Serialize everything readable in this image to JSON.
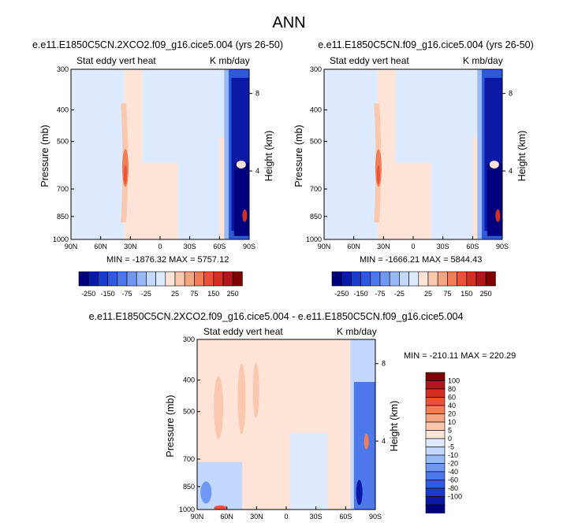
{
  "figure_title": "ANN",
  "colors": {
    "neg": [
      "#00007f",
      "#0a1aa6",
      "#1a3ccb",
      "#2f5ae0",
      "#4c78ec",
      "#6f97f3",
      "#98b8f8",
      "#c2d8fc",
      "#deebfe"
    ],
    "pos": [
      "#fde4d6",
      "#f9c8ae",
      "#f5a581",
      "#f07d56",
      "#e8533a",
      "#d32f22",
      "#b0161a",
      "#7f0000"
    ]
  },
  "panels": [
    {
      "title": "e.e11.E1850C5CN.2XCO2.f09_g16.cice5.004 (yrs 26-50)",
      "left_label": "Stat eddy vert heat",
      "right_label": "K mb/day",
      "y_axis_label": "Pressure (mb)",
      "y2_axis_label": "Height (km)",
      "y_ticks": [
        "300",
        "400",
        "500",
        "700",
        "850",
        "1000"
      ],
      "y2_ticks": [
        "8",
        "4"
      ],
      "x_ticks": [
        "90N",
        "60N",
        "30N",
        "0",
        "30S",
        "60S",
        "90S"
      ],
      "minmax": "MIN = -1876.32   MAX = 5757.12"
    },
    {
      "title": "e.e11.E1850C5CN.f09_g16.cice5.004 (yrs 26-50)",
      "left_label": "Stat eddy vert heat",
      "right_label": "K mb/day",
      "y_axis_label": "Pressure (mb)",
      "y2_axis_label": "Height (km)",
      "y_ticks": [
        "300",
        "400",
        "500",
        "700",
        "850",
        "1000"
      ],
      "y2_ticks": [
        "8",
        "4"
      ],
      "x_ticks": [
        "90N",
        "60N",
        "30N",
        "0",
        "30S",
        "60S",
        "90S"
      ],
      "minmax": "MIN = -1666.21   MAX = 5844.43"
    },
    {
      "title": "e.e11.E1850C5CN.2XCO2.f09_g16.cice5.004 - e.e11.E1850C5CN.f09_g16.cice5.004",
      "left_label": "Stat eddy vert heat",
      "right_label": "K mb/day",
      "y_axis_label": "Pressure (mb)",
      "y2_axis_label": "Height (km)",
      "y_ticks": [
        "300",
        "400",
        "500",
        "700",
        "850",
        "1000"
      ],
      "y2_ticks": [
        "8",
        "4"
      ],
      "x_ticks": [
        "90N",
        "60N",
        "30N",
        "0",
        "30S",
        "60S",
        "90S"
      ],
      "minmax": "MIN = -210.11   MAX = 220.29"
    }
  ],
  "colorbar_horizontal": {
    "labels": [
      "-250",
      "-150",
      "-75",
      "-25",
      "25",
      "75",
      "150",
      "250"
    ]
  },
  "colorbar_vertical": {
    "labels": [
      "100",
      "80",
      "60",
      "40",
      "20",
      "10",
      "5",
      "0",
      "-5",
      "-10",
      "-20",
      "-40",
      "-60",
      "-80",
      "-100"
    ]
  },
  "chart_data": [
    {
      "type": "heatmap",
      "title": "e.e11.E1850C5CN.2XCO2.f09_g16.cice5.004 (yrs 26-50)",
      "variable": "Stat eddy vert heat",
      "units": "K mb/day",
      "xlabel": "",
      "ylabel": "Pressure (mb)",
      "y2label": "Height (km)",
      "x_ticks": [
        "90N",
        "60N",
        "30N",
        "0",
        "30S",
        "60S",
        "90S"
      ],
      "y_ticks": [
        300,
        400,
        500,
        700,
        850,
        1000
      ],
      "ylim": [
        1000,
        300
      ],
      "y_scale": "log",
      "min": -1876.32,
      "max": 5757.12,
      "levels": [
        -250,
        -200,
        -150,
        -100,
        -75,
        -50,
        -25,
        -10,
        10,
        25,
        50,
        75,
        100,
        150,
        200,
        250
      ]
    },
    {
      "type": "heatmap",
      "title": "e.e11.E1850C5CN.f09_g16.cice5.004 (yrs 26-50)",
      "variable": "Stat eddy vert heat",
      "units": "K mb/day",
      "xlabel": "",
      "ylabel": "Pressure (mb)",
      "y2label": "Height (km)",
      "x_ticks": [
        "90N",
        "60N",
        "30N",
        "0",
        "30S",
        "60S",
        "90S"
      ],
      "y_ticks": [
        300,
        400,
        500,
        700,
        850,
        1000
      ],
      "ylim": [
        1000,
        300
      ],
      "y_scale": "log",
      "min": -1666.21,
      "max": 5844.43,
      "levels": [
        -250,
        -200,
        -150,
        -100,
        -75,
        -50,
        -25,
        -10,
        10,
        25,
        50,
        75,
        100,
        150,
        200,
        250
      ]
    },
    {
      "type": "heatmap",
      "title": "e.e11.E1850C5CN.2XCO2.f09_g16.cice5.004 - e.e11.E1850C5CN.f09_g16.cice5.004",
      "variable": "Stat eddy vert heat",
      "units": "K mb/day",
      "xlabel": "",
      "ylabel": "Pressure (mb)",
      "y2label": "Height (km)",
      "x_ticks": [
        "90N",
        "60N",
        "30N",
        "0",
        "30S",
        "60S",
        "90S"
      ],
      "y_ticks": [
        300,
        400,
        500,
        700,
        850,
        1000
      ],
      "ylim": [
        1000,
        300
      ],
      "y_scale": "log",
      "min": -210.11,
      "max": 220.29,
      "levels": [
        -100,
        -80,
        -60,
        -40,
        -20,
        -10,
        -5,
        0,
        5,
        10,
        20,
        40,
        60,
        80,
        100
      ]
    }
  ]
}
